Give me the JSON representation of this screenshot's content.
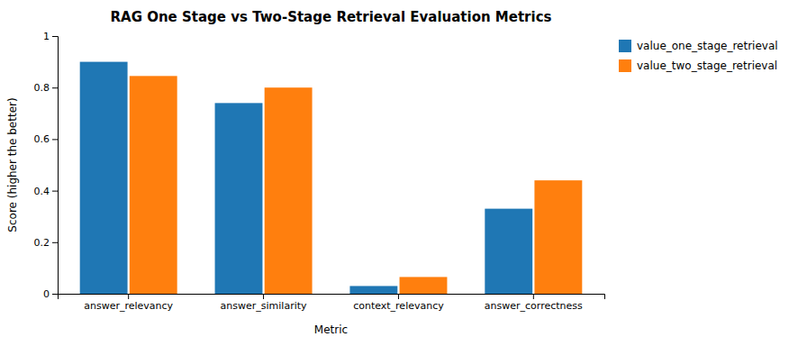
{
  "chart_data": {
    "type": "bar",
    "title": "RAG One Stage vs Two-Stage Retrieval Evaluation Metrics",
    "xlabel": "Metric",
    "ylabel": "Score (higher the better)",
    "categories": [
      "answer_relevancy",
      "answer_similarity",
      "context_relevancy",
      "answer_correctness"
    ],
    "series": [
      {
        "name": "value_one_stage_retrieval",
        "color": "#1f77b4",
        "values": [
          0.9,
          0.74,
          0.03,
          0.33
        ]
      },
      {
        "name": "value_two_stage_retrieval",
        "color": "#ff7f0e",
        "values": [
          0.845,
          0.8,
          0.065,
          0.44
        ]
      }
    ],
    "ylim": [
      0,
      1
    ],
    "yticks": [
      0,
      0.2,
      0.4,
      0.6,
      0.8,
      1
    ],
    "grid": false,
    "legend": "upper right"
  }
}
